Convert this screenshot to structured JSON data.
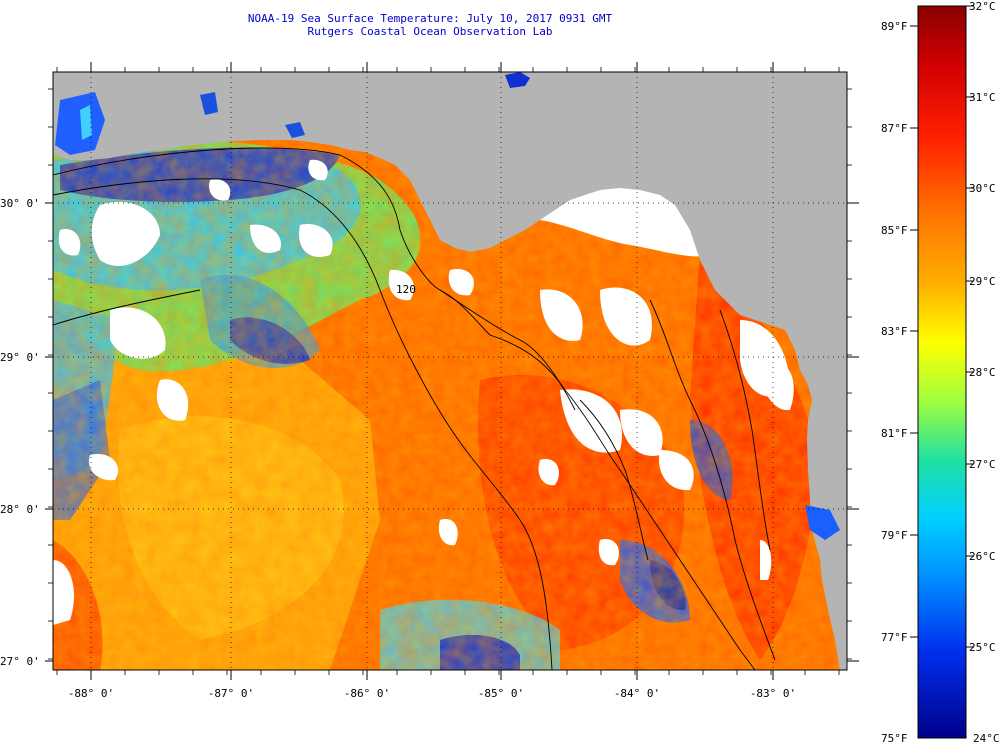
{
  "title": "NOAA-19 Sea Surface Temperature:  July 10, 2017 0931 GMT",
  "subtitle": "Rutgers Coastal Ocean Observation Lab",
  "map": {
    "lat_labels": [
      "30° 0'",
      "29° 0'",
      "28° 0'",
      "27° 0'"
    ],
    "lon_labels": [
      "-88° 0'",
      "-87° 0'",
      "-86° 0'",
      "-85° 0'",
      "-84° 0'",
      "-83° 0'"
    ],
    "contour_label": "120",
    "colors": {
      "land": "#b4b4b4",
      "cloud": "#ffffff",
      "warm": "#ff5000",
      "hot": "#ff2a00",
      "mid": "#ffb000",
      "cool": "#34e0ff",
      "cold": "#0030dd"
    }
  },
  "colorbar": {
    "fahrenheit_labels": [
      "89°F",
      "87°F",
      "85°F",
      "83°F",
      "81°F",
      "79°F",
      "77°F",
      "75°F"
    ],
    "celsius_labels": [
      "32°C",
      "31°C",
      "30°C",
      "29°C",
      "28°C",
      "27°C",
      "26°C",
      "25°C",
      "24°C"
    ]
  }
}
